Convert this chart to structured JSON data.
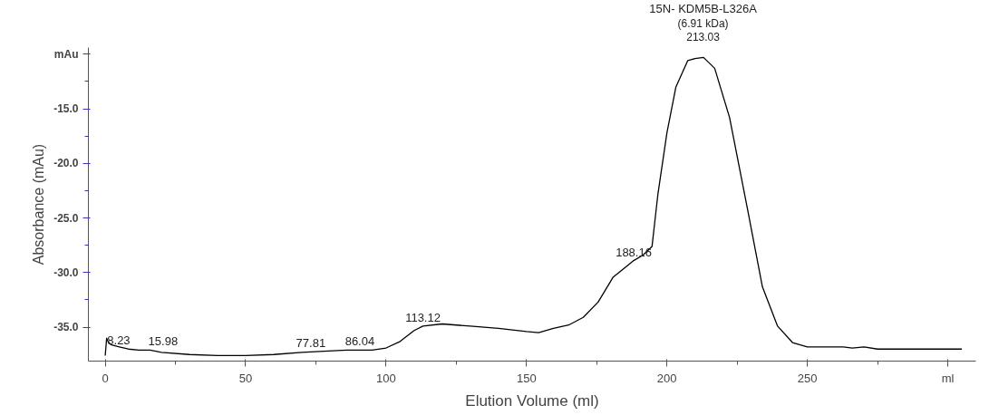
{
  "chart_data": {
    "type": "line",
    "xlabel": "Elution Volume (ml)",
    "ylabel": "Absorbance (mAu)",
    "x": [
      0,
      0.5,
      1,
      2,
      5,
      8.23,
      12,
      15.98,
      20,
      30,
      40,
      50,
      60,
      70,
      77.81,
      86.04,
      95,
      100,
      105,
      110,
      113.12,
      120,
      130,
      140,
      150,
      154.3,
      159.6,
      165,
      170.2,
      175.5,
      180.9,
      186.2,
      188.16,
      191.5,
      194.7,
      196.8,
      200,
      203.2,
      207.4,
      210,
      213.03,
      217,
      222.3,
      228.7,
      234,
      239.4,
      244.7,
      250,
      262.8,
      266,
      270.2,
      275,
      290,
      305
    ],
    "series": [
      {
        "color": "#000000",
        "values": [
          -37.6,
          -36.0,
          -36.3,
          -36.6,
          -36.8,
          -37.0,
          -37.1,
          -37.1,
          -37.3,
          -37.5,
          -37.6,
          -37.6,
          -37.5,
          -37.3,
          -37.2,
          -37.1,
          -37.1,
          -36.9,
          -36.3,
          -35.3,
          -34.9,
          -34.7,
          -34.9,
          -35.1,
          -35.4,
          -35.5,
          -35.1,
          -34.8,
          -34.1,
          -32.7,
          -30.4,
          -29.3,
          -28.9,
          -28.4,
          -27.6,
          -22.8,
          -17.2,
          -13.0,
          -10.6,
          -10.4,
          -10.3,
          -11.3,
          -15.8,
          -24.2,
          -31.3,
          -34.9,
          -36.4,
          -36.8,
          -36.8,
          -36.9,
          -36.8,
          -37.0,
          -37.0,
          -37.0
        ]
      }
    ],
    "xlim": [
      -6,
      310
    ],
    "ylim": [
      -38.1,
      -9.4
    ],
    "xticks": [
      0,
      50,
      100,
      150,
      200,
      250,
      {
        "value": 300,
        "label": "ml"
      }
    ],
    "yticks": [
      {
        "value": -35,
        "label": "-35.0"
      },
      {
        "value": -30,
        "label": "-30.0"
      },
      {
        "value": -25,
        "label": "-25.0"
      },
      {
        "value": -20,
        "label": "-20.0"
      },
      {
        "value": -15,
        "label": "-15.0"
      },
      {
        "value": -10,
        "label": "mAu"
      }
    ],
    "annotations": [
      {
        "text": "8.23",
        "x": 8.23,
        "y": -37.0
      },
      {
        "text": "15.98",
        "x": 15.98,
        "y": -37.1
      },
      {
        "text": "77.81",
        "x": 77.81,
        "y": -37.2
      },
      {
        "text": "86.04",
        "x": 86.04,
        "y": -37.1
      },
      {
        "text": "113.12",
        "x": 113.12,
        "y": -34.9
      },
      {
        "text": "188.16",
        "x": 188.16,
        "y": -28.9
      },
      "15N- KDM5B-L326A",
      "(6.91 kDa)",
      {
        "text": "213.03",
        "x": 213.03,
        "y": -10.3
      }
    ],
    "grid": false,
    "marker": "none",
    "line_style": "solid"
  }
}
